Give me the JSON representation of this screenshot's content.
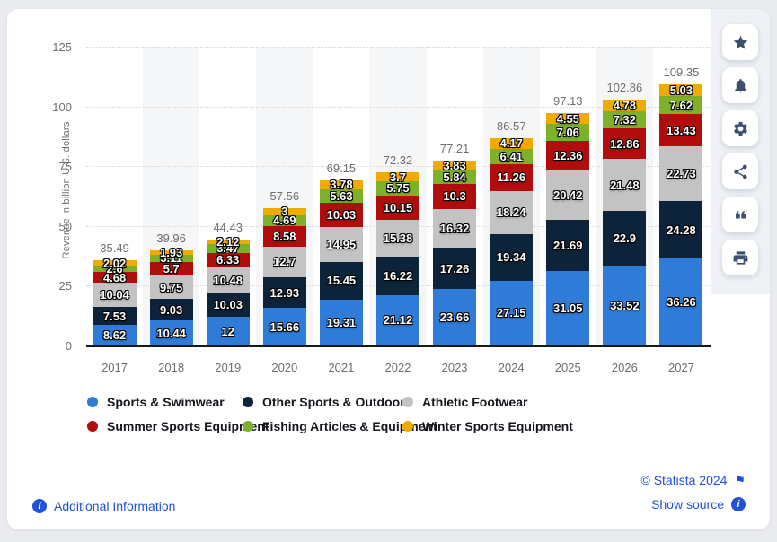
{
  "chart_data": {
    "type": "bar",
    "stacked": true,
    "categories": [
      "2017",
      "2018",
      "2019",
      "2020",
      "2021",
      "2022",
      "2023",
      "2024",
      "2025",
      "2026",
      "2027"
    ],
    "series": [
      {
        "name": "Sports & Swimwear",
        "color": "#2F7CD8",
        "values": [
          8.62,
          10.44,
          12,
          15.66,
          19.31,
          21.12,
          23.66,
          27.15,
          31.05,
          33.52,
          36.26
        ]
      },
      {
        "name": "Other Sports & Outdoor",
        "color": "#0D2339",
        "values": [
          7.53,
          9.03,
          10.03,
          12.93,
          15.45,
          16.22,
          17.26,
          19.34,
          21.69,
          22.9,
          24.28
        ]
      },
      {
        "name": "Athletic Footwear",
        "color": "#C3C3C3",
        "values": [
          10.04,
          9.75,
          10.48,
          12.7,
          14.95,
          15.38,
          16.32,
          18.24,
          20.42,
          21.48,
          22.73
        ]
      },
      {
        "name": "Summer Sports Equipment",
        "color": "#B20D0D",
        "values": [
          4.68,
          5.7,
          6.33,
          8.58,
          10.03,
          10.15,
          10.3,
          11.26,
          12.36,
          12.86,
          13.43
        ]
      },
      {
        "name": "Fishing Articles & Equipment",
        "color": "#7FB02A",
        "values": [
          2.6,
          3.11,
          3.47,
          4.69,
          5.63,
          5.75,
          5.84,
          6.41,
          7.06,
          7.32,
          7.62
        ]
      },
      {
        "name": "Winter Sports Equipment",
        "color": "#EFAB00",
        "values": [
          2.02,
          1.93,
          2.12,
          3,
          3.78,
          3.7,
          3.83,
          4.17,
          4.55,
          4.78,
          5.03
        ]
      }
    ],
    "totals": [
      35.49,
      39.96,
      44.43,
      57.56,
      69.15,
      72.32,
      77.21,
      86.57,
      97.13,
      102.86,
      109.35
    ],
    "ylabel": "Revenue in billion U.S. dollars",
    "ylim": [
      0,
      125
    ],
    "yticks": [
      0,
      25,
      50,
      75,
      100,
      125
    ],
    "grid": "horizontal-dotted",
    "legend_position": "bottom",
    "band_color": "#f5f6f8",
    "value_label_color": "#ffffff",
    "total_label_color": "#6e6e6e",
    "axis_label_color": "#6f6f6f"
  },
  "toolbar": {
    "buttons": [
      {
        "name": "favorite",
        "icon": "star-icon"
      },
      {
        "name": "alert",
        "icon": "bell-icon"
      },
      {
        "name": "settings",
        "icon": "gear-icon"
      },
      {
        "name": "share",
        "icon": "share-icon"
      },
      {
        "name": "cite",
        "icon": "quote-icon"
      },
      {
        "name": "print",
        "icon": "print-icon"
      }
    ]
  },
  "footer": {
    "additional_information": "Additional Information",
    "copyright": "© Statista 2024",
    "show_source": "Show source",
    "link_color": "#2052D8",
    "info_glyph": "i",
    "flag_glyph": "⚑"
  }
}
